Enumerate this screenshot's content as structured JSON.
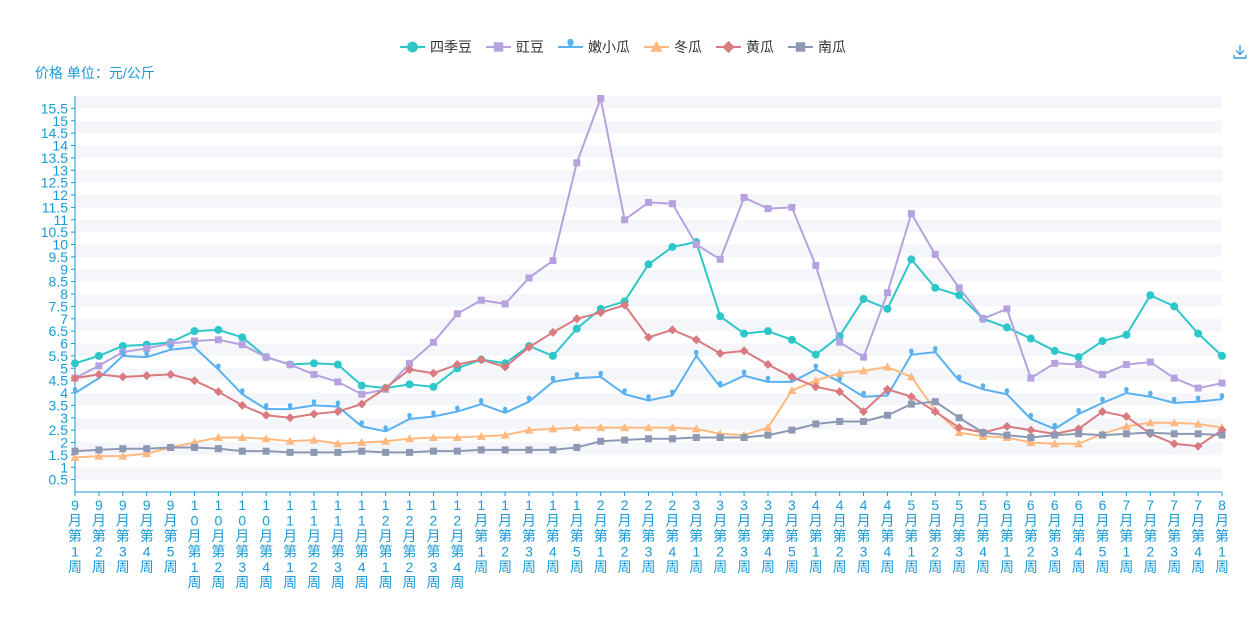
{
  "toolbar": {
    "download_icon": "download-icon"
  },
  "chart_data": {
    "type": "line",
    "ylabel": "价格 单位：元/公斤",
    "ylim": [
      0,
      16
    ],
    "y_ticks": [
      "0.5",
      "1",
      "1.5",
      "2",
      "2.5",
      "3",
      "3.5",
      "4",
      "4.5",
      "5",
      "5.5",
      "6",
      "6.5",
      "7",
      "7.5",
      "8",
      "8.5",
      "9",
      "9.5",
      "10",
      "10.5",
      "11",
      "11.5",
      "12",
      "12.5",
      "13",
      "13.5",
      "14",
      "14.5",
      "15",
      "15.5"
    ],
    "grid": true,
    "legend_position": "top-center",
    "categories": [
      "9月第1周",
      "9月第2周",
      "9月第3周",
      "9月第4周",
      "9月第5周",
      "10月第1周",
      "10月第2周",
      "10月第3周",
      "10月第4周",
      "11月第1周",
      "11月第2周",
      "11月第3周",
      "11月第4周",
      "12月第1周",
      "12月第2周",
      "12月第3周",
      "12月第4周",
      "1月第1周",
      "1月第2周",
      "1月第3周",
      "1月第4周",
      "1月第5周",
      "2月第1周",
      "2月第2周",
      "2月第3周",
      "2月第4周",
      "3月第1周",
      "3月第2周",
      "3月第3周",
      "3月第4周",
      "3月第5周",
      "4月第1周",
      "4月第2周",
      "4月第3周",
      "4月第4周",
      "5月第1周",
      "5月第2周",
      "5月第3周",
      "5月第4周",
      "6月第1周",
      "6月第2周",
      "6月第3周",
      "6月第4周",
      "6月第5周",
      "7月第1周",
      "7月第2周",
      "7月第3周",
      "7月第4周",
      "8月第1周"
    ],
    "series": [
      {
        "name": "四季豆",
        "color": "#2ec7c9",
        "marker": "circle",
        "values": [
          5.2,
          5.5,
          5.9,
          5.95,
          6.05,
          6.5,
          6.55,
          6.25,
          5.45,
          5.15,
          5.2,
          5.15,
          4.3,
          4.2,
          4.35,
          4.25,
          5.0,
          5.35,
          5.2,
          5.9,
          5.5,
          6.6,
          7.4,
          7.7,
          9.2,
          9.9,
          10.1,
          7.1,
          6.4,
          6.5,
          6.15,
          5.55,
          6.3,
          7.8,
          7.4,
          9.4,
          8.25,
          7.95,
          7.0,
          6.65,
          6.2,
          5.7,
          5.45,
          6.1,
          6.35,
          7.95,
          7.5,
          6.4,
          5.5
        ]
      },
      {
        "name": "豇豆",
        "color": "#b6a2de",
        "marker": "rect",
        "values": [
          4.6,
          5.1,
          5.65,
          5.8,
          6.0,
          6.1,
          6.15,
          5.95,
          5.45,
          5.15,
          4.75,
          4.45,
          3.95,
          4.15,
          5.2,
          6.05,
          7.2,
          7.75,
          7.6,
          8.65,
          9.35,
          13.3,
          15.9,
          11.0,
          11.7,
          11.65,
          10.0,
          9.4,
          11.9,
          11.45,
          11.5,
          9.15,
          6.05,
          5.45,
          8.05,
          11.25,
          9.6,
          8.25,
          7.0,
          7.4,
          4.6,
          5.2,
          5.15,
          4.75,
          5.15,
          5.25,
          4.6,
          4.2,
          4.4
        ]
      },
      {
        "name": "嫩小瓜",
        "color": "#5ab1ef",
        "marker": "pin",
        "values": [
          4.0,
          4.6,
          5.5,
          5.45,
          5.75,
          5.85,
          4.95,
          3.95,
          3.35,
          3.35,
          3.5,
          3.45,
          2.65,
          2.45,
          2.95,
          3.05,
          3.25,
          3.55,
          3.2,
          3.65,
          4.45,
          4.6,
          4.65,
          3.95,
          3.7,
          3.9,
          5.5,
          4.25,
          4.7,
          4.45,
          4.45,
          4.95,
          4.45,
          3.85,
          3.9,
          5.55,
          5.65,
          4.5,
          4.15,
          3.95,
          2.95,
          2.55,
          3.15,
          3.6,
          4.0,
          3.85,
          3.6,
          3.65,
          3.75
        ]
      },
      {
        "name": "冬瓜",
        "color": "#ffb980",
        "marker": "triangle",
        "values": [
          1.4,
          1.45,
          1.45,
          1.55,
          1.8,
          2.0,
          2.2,
          2.2,
          2.15,
          2.05,
          2.1,
          1.95,
          2.0,
          2.05,
          2.15,
          2.2,
          2.2,
          2.25,
          2.3,
          2.5,
          2.55,
          2.6,
          2.6,
          2.6,
          2.6,
          2.6,
          2.55,
          2.35,
          2.3,
          2.6,
          4.1,
          4.5,
          4.8,
          4.9,
          5.05,
          4.65,
          3.3,
          2.4,
          2.25,
          2.2,
          2.0,
          1.95,
          1.95,
          2.35,
          2.65,
          2.8,
          2.8,
          2.75,
          2.6
        ]
      },
      {
        "name": "黄瓜",
        "color": "#d87a80",
        "marker": "diamond",
        "values": [
          4.6,
          4.75,
          4.65,
          4.7,
          4.75,
          4.5,
          4.05,
          3.5,
          3.1,
          3.0,
          3.15,
          3.25,
          3.55,
          4.2,
          4.95,
          4.8,
          5.15,
          5.35,
          5.05,
          5.85,
          6.45,
          7.0,
          7.25,
          7.55,
          6.25,
          6.55,
          6.15,
          5.6,
          5.7,
          5.15,
          4.65,
          4.25,
          4.05,
          3.25,
          4.15,
          3.85,
          3.25,
          2.6,
          2.4,
          2.65,
          2.5,
          2.35,
          2.55,
          3.25,
          3.05,
          2.35,
          1.95,
          1.85,
          2.5
        ]
      },
      {
        "name": "南瓜",
        "color": "#8d98b3",
        "marker": "rect",
        "values": [
          1.65,
          1.7,
          1.75,
          1.75,
          1.8,
          1.8,
          1.75,
          1.65,
          1.65,
          1.6,
          1.6,
          1.6,
          1.65,
          1.6,
          1.6,
          1.65,
          1.65,
          1.7,
          1.7,
          1.7,
          1.7,
          1.8,
          2.05,
          2.1,
          2.15,
          2.15,
          2.2,
          2.2,
          2.2,
          2.3,
          2.5,
          2.75,
          2.85,
          2.85,
          3.1,
          3.55,
          3.65,
          3.0,
          2.4,
          2.3,
          2.2,
          2.3,
          2.35,
          2.3,
          2.35,
          2.4,
          2.35,
          2.35,
          2.3
        ]
      }
    ]
  }
}
